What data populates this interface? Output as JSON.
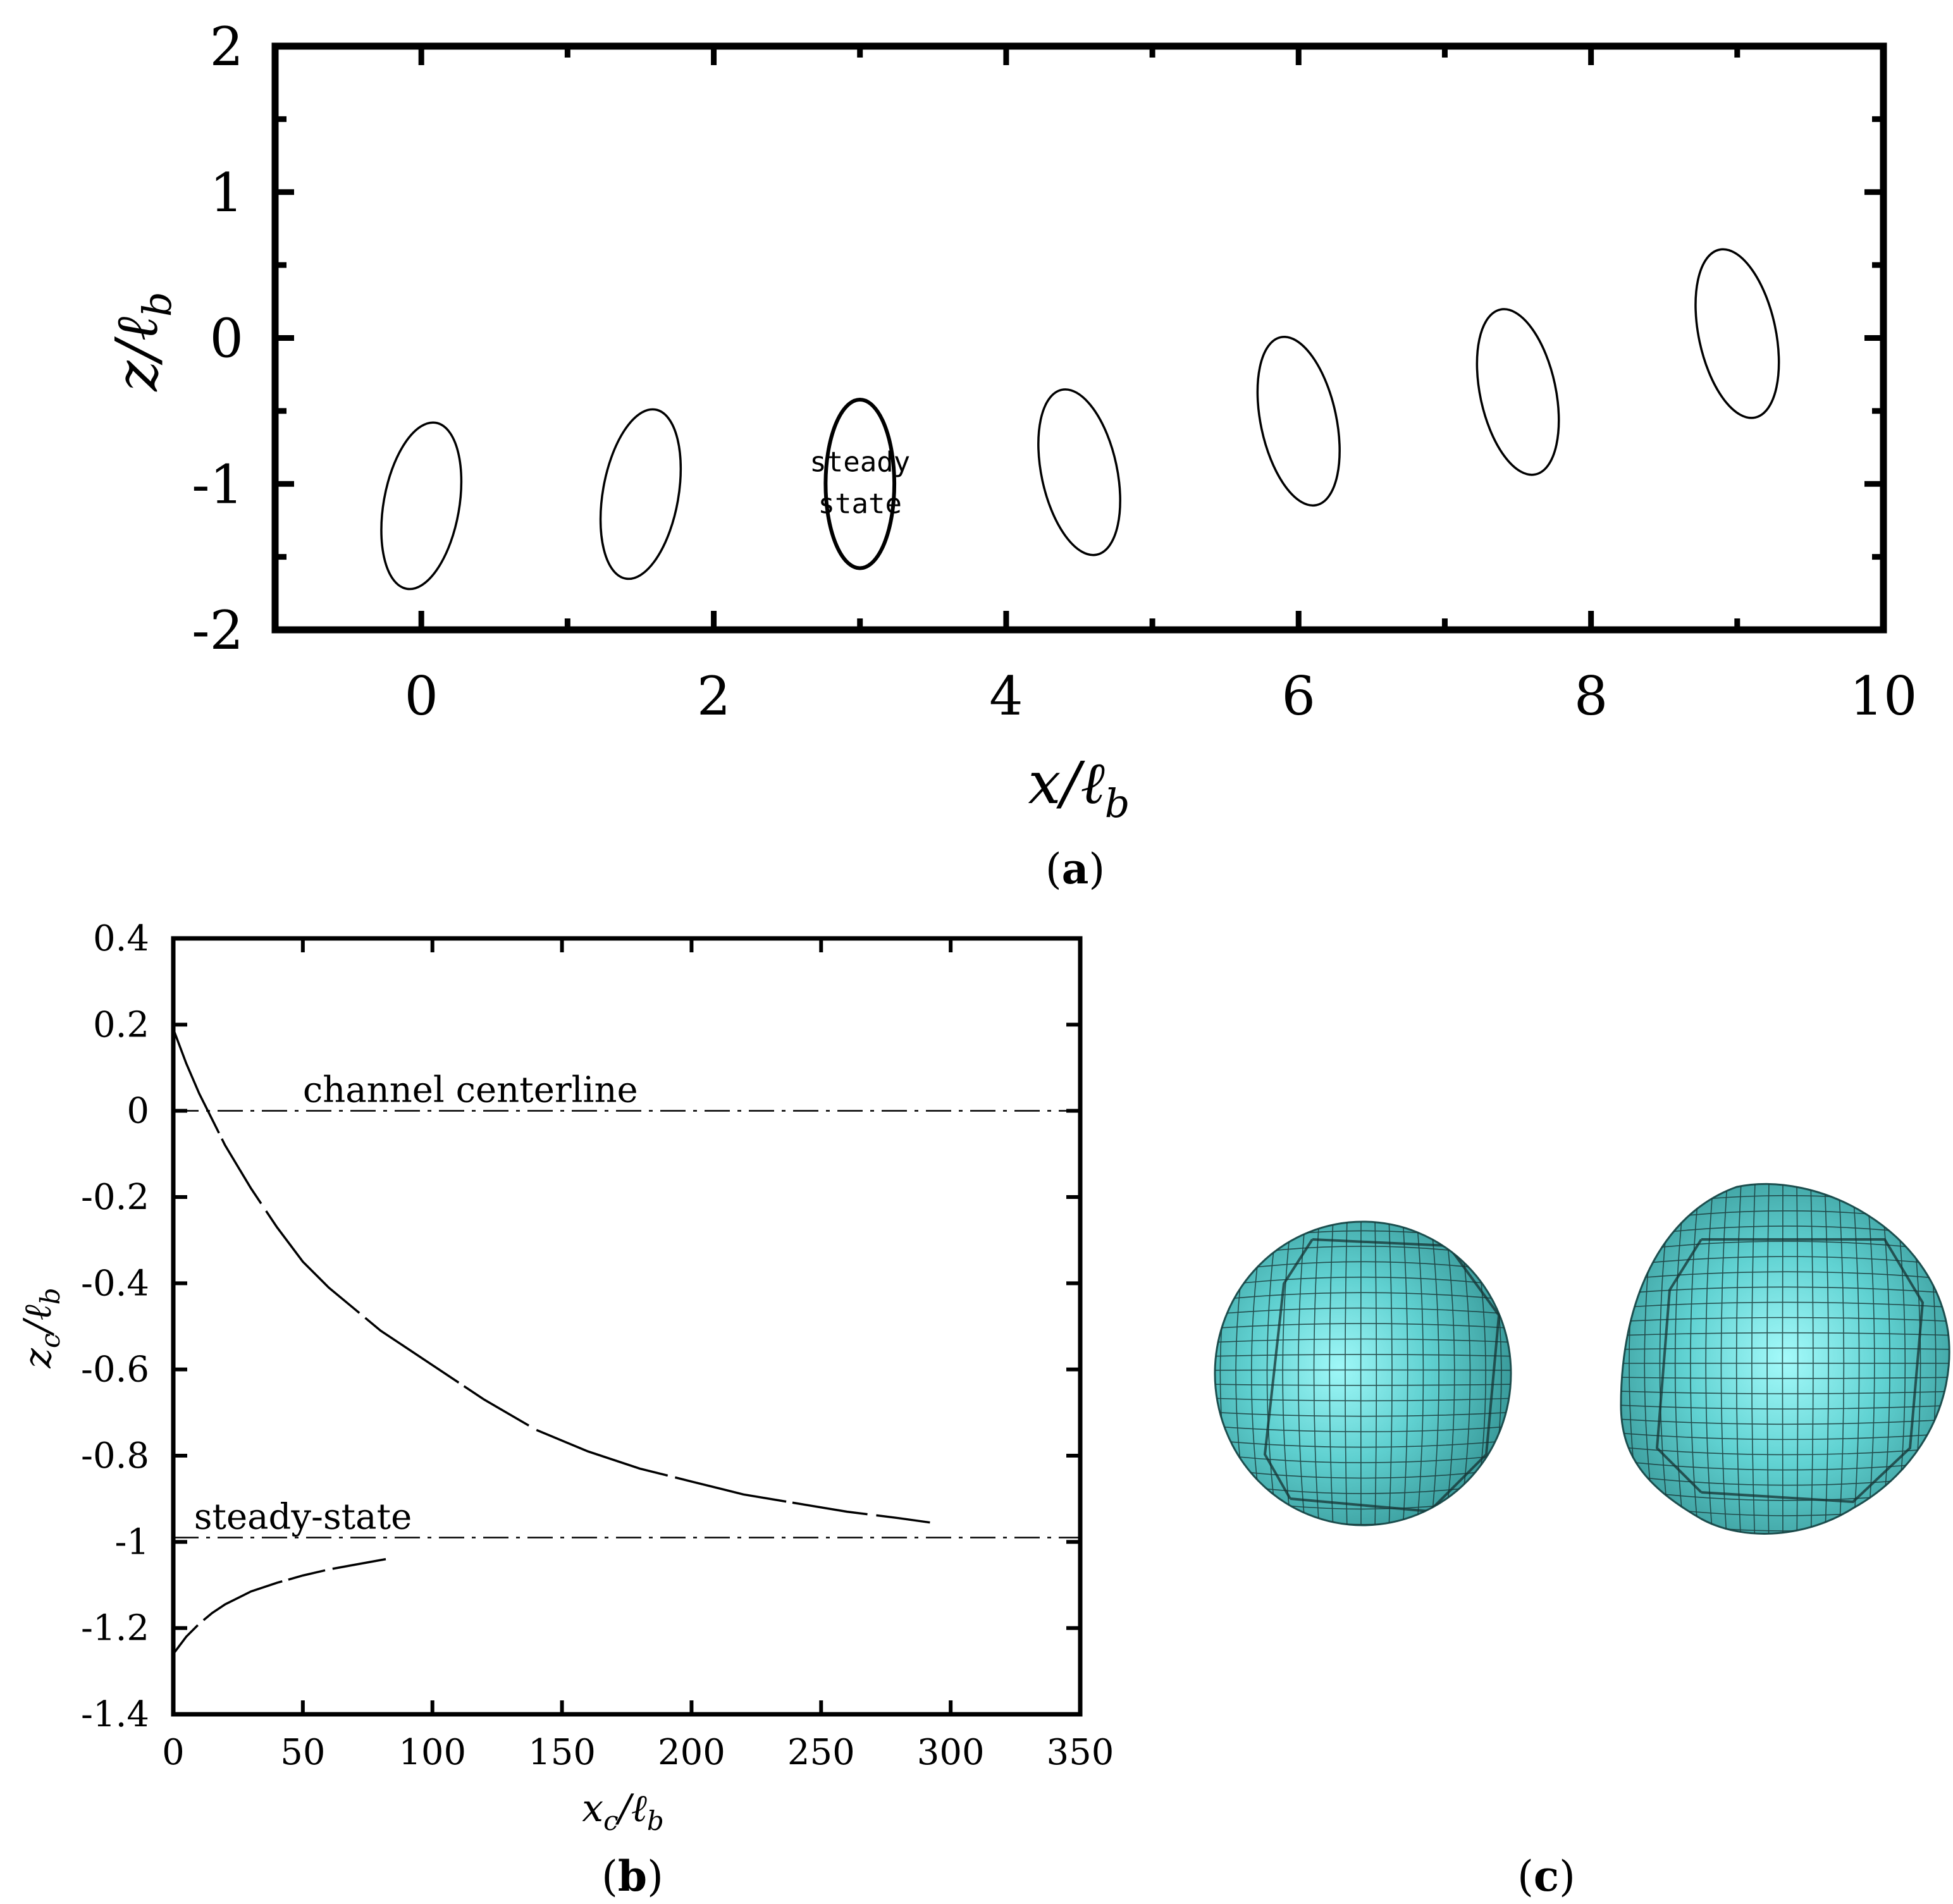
{
  "chart_data": [
    {
      "id": "a",
      "type": "scatter",
      "panel_label": "(a)",
      "xlabel_main": "x/ℓ",
      "xlabel_sub": "b",
      "ylabel_main": "z/ℓ",
      "ylabel_sub": "b",
      "xlim": [
        -1,
        10
      ],
      "ylim": [
        -2,
        2
      ],
      "xticks": [
        0,
        2,
        4,
        6,
        8,
        10
      ],
      "xtick_labels": [
        "0",
        "2",
        "4",
        "6",
        "8",
        "10"
      ],
      "yticks": [
        2,
        1,
        0,
        -1,
        -2
      ],
      "ytick_labels": [
        "2",
        "1",
        "0",
        "-1",
        "-2"
      ],
      "grid": false,
      "series": [
        {
          "x": 0.0,
          "z": -1.15,
          "rx": 0.55,
          "rz": 0.55,
          "bold": false
        },
        {
          "x": 1.5,
          "z": -1.07,
          "rx": 0.55,
          "rz": 0.56,
          "bold": false
        },
        {
          "x": 3.0,
          "z": -1.0,
          "rx": 0.5,
          "rz": 0.55,
          "bold": true,
          "label_lines": [
            "steady",
            "state"
          ]
        },
        {
          "x": 4.5,
          "z": -0.92,
          "rx": 0.55,
          "rz": 0.55,
          "bold": false
        },
        {
          "x": 6.0,
          "z": -0.57,
          "rx": 0.55,
          "rz": 0.56,
          "bold": false
        },
        {
          "x": 7.5,
          "z": -0.37,
          "rx": 0.55,
          "rz": 0.55,
          "bold": false
        },
        {
          "x": 9.0,
          "z": 0.03,
          "rx": 0.56,
          "rz": 0.56,
          "bold": false
        }
      ]
    },
    {
      "id": "b",
      "type": "line",
      "panel_label": "(b)",
      "xlabel_main": "x",
      "xlabel_sub": "c",
      "xlabel_den": "/ℓ",
      "xlabel_den_sub": "b",
      "ylabel_main": "z",
      "ylabel_sub": "c",
      "ylabel_den": "/ℓ",
      "ylabel_den_sub": "b",
      "xlim": [
        0,
        350
      ],
      "ylim": [
        -1.4,
        0.4
      ],
      "xticks": [
        0,
        50,
        100,
        150,
        200,
        250,
        300,
        350
      ],
      "xtick_labels": [
        "0",
        "50",
        "100",
        "150",
        "200",
        "250",
        "300",
        "350"
      ],
      "yticks": [
        0.4,
        0.2,
        0,
        -0.2,
        -0.4,
        -0.6,
        -0.8,
        -1,
        -1.2,
        -1.4
      ],
      "ytick_labels": [
        "0.4",
        "0.2",
        "0",
        "-0.2",
        "-0.4",
        "-0.6",
        "-0.8",
        "-1",
        "-1.2",
        "-1.4"
      ],
      "grid": false,
      "reference_lines": [
        {
          "y": 0,
          "label": "channel centerline",
          "label_x": 50
        },
        {
          "y": -0.99,
          "label": "steady-state",
          "label_x": 8
        }
      ],
      "series": [
        {
          "x": [
            0,
            5,
            10,
            15,
            20,
            30,
            40,
            50,
            60,
            70,
            80,
            100,
            120,
            140,
            160,
            180,
            200,
            220,
            240,
            260,
            280,
            292
          ],
          "y": [
            0.19,
            0.11,
            0.04,
            -0.02,
            -0.08,
            -0.18,
            -0.27,
            -0.35,
            -0.41,
            -0.46,
            -0.51,
            -0.59,
            -0.67,
            -0.74,
            -0.79,
            -0.83,
            -0.86,
            -0.89,
            -0.91,
            -0.93,
            -0.945,
            -0.955
          ]
        },
        {
          "x": [
            0,
            5,
            10,
            15,
            20,
            30,
            40,
            50,
            60,
            70,
            82
          ],
          "y": [
            -1.26,
            -1.22,
            -1.19,
            -1.165,
            -1.145,
            -1.115,
            -1.095,
            -1.078,
            -1.064,
            -1.053,
            -1.04
          ]
        }
      ]
    }
  ],
  "panel_c": {
    "panel_label": "(c)",
    "surface_color": "#5cd6d6"
  }
}
